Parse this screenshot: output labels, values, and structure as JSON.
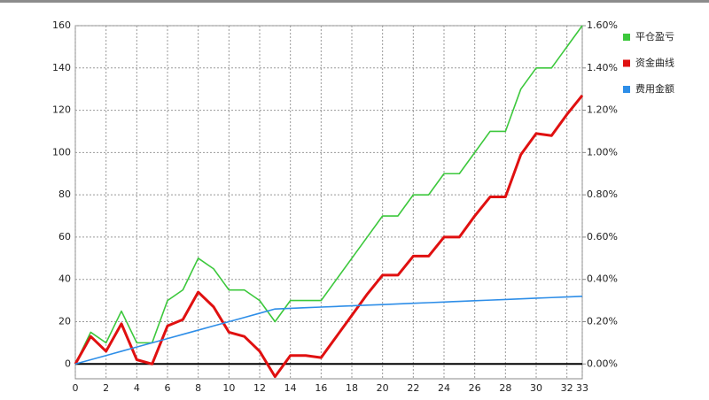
{
  "chart_data": {
    "type": "line",
    "x": [
      0,
      1,
      2,
      3,
      4,
      5,
      6,
      7,
      8,
      9,
      10,
      11,
      12,
      13,
      14,
      15,
      16,
      17,
      18,
      19,
      20,
      21,
      22,
      23,
      24,
      25,
      26,
      27,
      28,
      29,
      30,
      31,
      32,
      33
    ],
    "series": [
      {
        "name": "平仓盈亏",
        "color": "#3cc83c",
        "values": [
          0,
          15,
          10,
          25,
          10,
          10,
          30,
          35,
          50,
          45,
          35,
          35,
          30,
          20,
          30,
          30,
          30,
          40,
          50,
          60,
          70,
          70,
          80,
          80,
          90,
          90,
          100,
          110,
          110,
          130,
          140,
          140,
          150,
          160
        ]
      },
      {
        "name": "资金曲线",
        "color": "#e01010",
        "values": [
          0,
          13,
          6,
          19,
          2,
          0,
          18,
          21,
          34,
          27,
          15,
          13,
          6,
          -6,
          4,
          4,
          3,
          13,
          23,
          33,
          42,
          42,
          51,
          51,
          60,
          60,
          70,
          79,
          79,
          99,
          109,
          108,
          118,
          127
        ]
      },
      {
        "name": "费用金额",
        "color": "#2e8ee8",
        "axis": "y2",
        "values": [
          0,
          0.02,
          0.04,
          0.06,
          0.08,
          0.1,
          0.12,
          0.14,
          0.16,
          0.18,
          0.2,
          0.22,
          0.24,
          0.26,
          0.263,
          0.266,
          0.269,
          0.272,
          0.275,
          0.278,
          0.281,
          0.284,
          0.287,
          0.29,
          0.293,
          0.296,
          0.299,
          0.302,
          0.305,
          0.308,
          0.311,
          0.314,
          0.317,
          0.32
        ]
      }
    ],
    "xlim": [
      0,
      33
    ],
    "xticks": [
      0,
      2,
      4,
      6,
      8,
      10,
      12,
      14,
      16,
      18,
      20,
      22,
      24,
      26,
      28,
      30,
      32,
      33
    ],
    "ylim": [
      -7,
      160
    ],
    "yticks": [
      0,
      20,
      40,
      60,
      80,
      100,
      120,
      140,
      160
    ],
    "y2lim": [
      -0.07,
      1.6
    ],
    "y2ticks": [
      {
        "value": 0,
        "label": "0.00%"
      },
      {
        "value": 0.2,
        "label": "0.20%"
      },
      {
        "value": 0.4,
        "label": "0.40%"
      },
      {
        "value": 0.6,
        "label": "0.60%"
      },
      {
        "value": 0.8,
        "label": "0.80%"
      },
      {
        "value": 1.0,
        "label": "1.00%"
      },
      {
        "value": 1.2,
        "label": "1.20%"
      },
      {
        "value": 1.4,
        "label": "1.40%"
      },
      {
        "value": 1.6,
        "label": "1.60%"
      }
    ],
    "grid": true,
    "legend": "right"
  }
}
